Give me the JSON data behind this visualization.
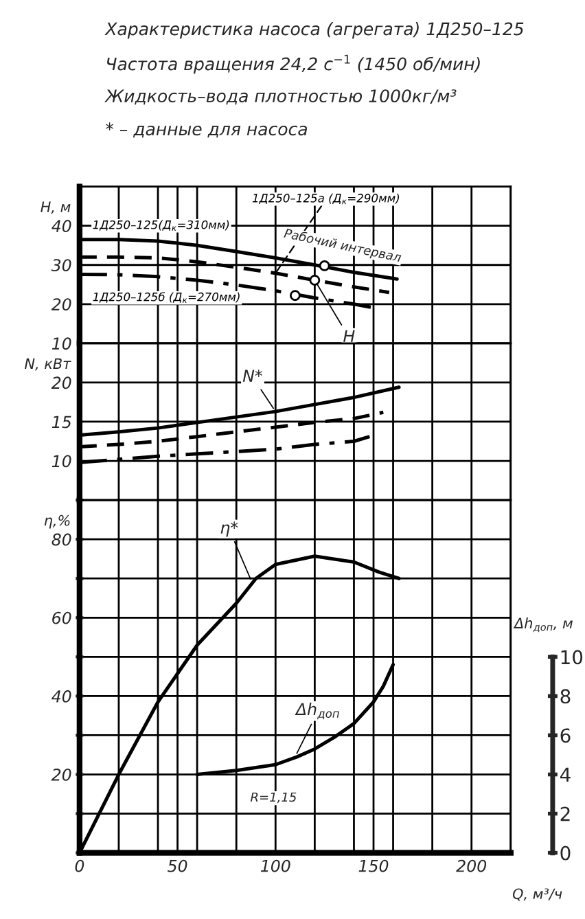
{
  "chart_data": [
    {
      "type": "line",
      "title": "Характеристика насоса (агрегата) 1Д250–125",
      "subtitle": "Частота вращения 24,2 с$^{−1}$ (1450 об/мин)",
      "annotations": [
        "Жидкость–вода плотностью 1000кг/м³",
        "* – данные для насоса",
        {
          "text": "H",
          "x": 120,
          "y": 26.1
        },
        "Рабочий интервал"
      ],
      "ylabel": "H, м",
      "xlim": [
        0,
        220
      ],
      "xticks": [
        0,
        {
          "value": 20,
          "label": null
        },
        {
          "value": 40,
          "label": null
        },
        50,
        {
          "value": 60,
          "label": null
        },
        {
          "value": 80,
          "label": null
        },
        100,
        {
          "value": 120,
          "label": null
        },
        {
          "value": 140,
          "label": null
        },
        150,
        {
          "value": 160,
          "label": null
        },
        {
          "value": 180,
          "label": null
        },
        200,
        {
          "value": 220,
          "label": null
        }
      ],
      "ylim": [
        10,
        50
      ],
      "yticks": [
        10,
        20,
        30,
        40,
        {
          "value": 50,
          "label": null
        }
      ],
      "grid": true,
      "tick_labels": "y",
      "series": [
        {
          "name": "1Д250–125(Д$_{к}$=310мм)",
          "line_style": "solid",
          "color": "#000000",
          "x": [
            0,
            20,
            40,
            60,
            80,
            100,
            120,
            140,
            162
          ],
          "values": [
            36.5,
            36.5,
            36.1,
            35,
            33.4,
            31.8,
            30,
            28.1,
            26.4
          ]
        },
        {
          "name": "1Д250–125а (Д$_{к}$=290мм)",
          "line_style": "dashed",
          "color": "#000000",
          "x": [
            0,
            20,
            40,
            60,
            80,
            100,
            120,
            140,
            158
          ],
          "values": [
            32,
            32,
            31.8,
            30.8,
            29.4,
            27.9,
            26.1,
            24.4,
            23
          ]
        },
        {
          "name": "1Д250–125б (Д$_{к}$=270мм)",
          "line_style": "dashdot",
          "color": "#000000",
          "x": [
            0,
            20,
            40,
            60,
            80,
            100,
            120,
            140,
            150
          ],
          "values": [
            27.6,
            27.5,
            27,
            26.1,
            24.9,
            23.4,
            21.6,
            20,
            19.1
          ]
        },
        {
          "type": "scatter",
          "marker": "circle",
          "color": "#000000",
          "x": [
            125,
            120,
            110
          ],
          "values": [
            29.8,
            26.1,
            22.2
          ]
        }
      ]
    },
    {
      "type": "line",
      "annotations": [
        {
          "text": "N*",
          "x": 100,
          "y": 16.3
        }
      ],
      "ylabel": "N, кВт",
      "xlim": [
        0,
        220
      ],
      "xticks": [
        0,
        {
          "value": 20,
          "label": null
        },
        {
          "value": 40,
          "label": null
        },
        50,
        {
          "value": 60,
          "label": null
        },
        {
          "value": 80,
          "label": null
        },
        100,
        {
          "value": 120,
          "label": null
        },
        {
          "value": 140,
          "label": null
        },
        150,
        {
          "value": 160,
          "label": null
        },
        {
          "value": 180,
          "label": null
        },
        200,
        {
          "value": 220,
          "label": null
        }
      ],
      "ylim": [
        5,
        25
      ],
      "yticks": [
        {
          "value": 5,
          "label": null
        },
        10,
        15,
        20,
        {
          "value": 25,
          "label": null
        }
      ],
      "grid": true,
      "tick_labels": "y",
      "series": [
        {
          "line_style": "solid",
          "color": "#000000",
          "x": [
            0,
            20,
            40,
            60,
            80,
            100,
            120,
            140,
            163
          ],
          "values": [
            13.3,
            13.7,
            14.2,
            14.9,
            15.6,
            16.3,
            17.2,
            18.1,
            19.4
          ]
        },
        {
          "line_style": "dashed",
          "color": "#000000",
          "x": [
            0,
            20,
            40,
            60,
            80,
            100,
            120,
            140,
            155
          ],
          "values": [
            11.8,
            12.1,
            12.5,
            13.1,
            13.7,
            14.3,
            14.9,
            15.4,
            16.2
          ]
        },
        {
          "line_style": "dashdot",
          "color": "#000000",
          "x": [
            0,
            20,
            40,
            60,
            80,
            100,
            120,
            140,
            148
          ],
          "values": [
            9.8,
            10.2,
            10.6,
            10.9,
            11.2,
            11.5,
            12.1,
            12.5,
            13.1
          ]
        }
      ]
    },
    {
      "type": "line",
      "annotations": [
        {
          "text": "η*",
          "x": 88,
          "y": 69
        },
        {
          "text": "Δh$_{доп}$",
          "x": 110,
          "y": 24.5
        },
        "R=1,15"
      ],
      "ylabel": "η,%",
      "xlabel": "Q, м³/ч",
      "y2label": "Δh$_{доп}$, м",
      "xlim": [
        0,
        220
      ],
      "xticks": [
        0,
        {
          "value": 20,
          "label": null
        },
        {
          "value": 40,
          "label": null
        },
        50,
        {
          "value": 60,
          "label": null
        },
        {
          "value": 80,
          "label": null
        },
        100,
        {
          "value": 120,
          "label": null
        },
        {
          "value": 140,
          "label": null
        },
        150,
        {
          "value": 160,
          "label": null
        },
        {
          "value": 180,
          "label": null
        },
        200,
        {
          "value": 220,
          "label": null
        }
      ],
      "ylim": [
        0,
        90
      ],
      "yticks": [
        {
          "value": 0,
          "label": null
        },
        {
          "value": 10,
          "label": null
        },
        20,
        {
          "value": 30,
          "label": null
        },
        40,
        {
          "value": 50,
          "label": null
        },
        60,
        {
          "value": 70,
          "label": null
        },
        80,
        {
          "value": 90,
          "label": null
        }
      ],
      "y2lim": [
        0,
        18
      ],
      "y2ticks": [
        0,
        2,
        4,
        6,
        8,
        10
      ],
      "grid": true,
      "series": [
        {
          "line_style": "solid",
          "color": "#000000",
          "x": [
            0,
            20,
            40,
            60,
            80,
            90,
            100,
            120,
            140,
            153,
            163
          ],
          "values": [
            0,
            20,
            38.5,
            53,
            63.7,
            70,
            73.6,
            75.7,
            74.2,
            71.6,
            70
          ]
        },
        {
          "line_style": "solid",
          "color": "#000000",
          "axis": "y2",
          "x": [
            60,
            80,
            100,
            111,
            120,
            130,
            140,
            150,
            155,
            160
          ],
          "values": [
            4,
            4.2,
            4.5,
            4.9,
            5.3,
            5.9,
            6.6,
            7.7,
            8.5,
            9.6
          ]
        }
      ]
    }
  ]
}
